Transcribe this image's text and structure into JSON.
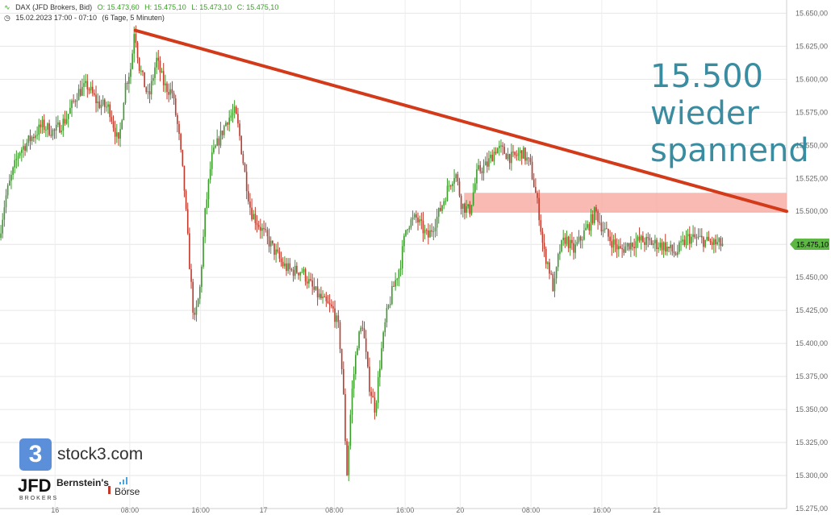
{
  "header": {
    "symbol": "DAX (JFD Brokers, Bid)",
    "open": "O: 15.473,60",
    "high": "H: 15.475,10",
    "low": "L: 15.473,10",
    "close": "C: 15.475,10",
    "range": "15.02.2023 17:00 - 07:10",
    "interval": "(6 Tage, 5 Minuten)"
  },
  "annotation": {
    "lines": [
      "15.500",
      "wieder",
      "spannend"
    ],
    "color": "#3a8ca0"
  },
  "branding": {
    "stock3": "stock3.com",
    "stock3_glyph": "3",
    "jfd": "JFD",
    "jfd_sub": "BROKERS",
    "bernstein": "Bernstein's",
    "boerse": "Börse"
  },
  "chart_data": {
    "type": "candlestick",
    "y_axis": {
      "min": 15275,
      "max": 15660,
      "position": "right",
      "ticks": [
        15275,
        15300,
        15325,
        15350,
        15375,
        15400,
        15425,
        15450,
        15475,
        15500,
        15525,
        15550,
        15575,
        15600,
        15625,
        15650
      ],
      "tick_labels": [
        "15.275,00",
        "15.300,00",
        "15.325,00",
        "15.350,00",
        "15.375,00",
        "15.400,00",
        "15.425,00",
        "15.450,00",
        "15.475,00",
        "15.500,00",
        "15.525,00",
        "15.550,00",
        "15.575,00",
        "15.600,00",
        "15.625,00",
        "15.650,00"
      ]
    },
    "x_axis": {
      "labels": [
        "16",
        "08:00",
        "16:00",
        "17",
        "08:00",
        "16:00",
        "20",
        "08:00",
        "16:00",
        "21"
      ],
      "positions": [
        0.07,
        0.165,
        0.255,
        0.335,
        0.425,
        0.515,
        0.585,
        0.675,
        0.765,
        0.835
      ]
    },
    "grid": true,
    "last_price": {
      "value": 15475.1,
      "label": "15.475,10",
      "color": "#5cb842"
    },
    "price_path": [
      [
        0.0,
        15480
      ],
      [
        0.008,
        15510
      ],
      [
        0.015,
        15525
      ],
      [
        0.025,
        15545
      ],
      [
        0.04,
        15555
      ],
      [
        0.055,
        15565
      ],
      [
        0.07,
        15560
      ],
      [
        0.085,
        15570
      ],
      [
        0.1,
        15590
      ],
      [
        0.112,
        15595
      ],
      [
        0.125,
        15582
      ],
      [
        0.14,
        15578
      ],
      [
        0.152,
        15550
      ],
      [
        0.16,
        15595
      ],
      [
        0.168,
        15610
      ],
      [
        0.172,
        15640
      ],
      [
        0.178,
        15610
      ],
      [
        0.19,
        15585
      ],
      [
        0.2,
        15615
      ],
      [
        0.21,
        15595
      ],
      [
        0.22,
        15590
      ],
      [
        0.228,
        15560
      ],
      [
        0.235,
        15520
      ],
      [
        0.242,
        15460
      ],
      [
        0.248,
        15415
      ],
      [
        0.255,
        15440
      ],
      [
        0.262,
        15500
      ],
      [
        0.27,
        15540
      ],
      [
        0.28,
        15555
      ],
      [
        0.29,
        15570
      ],
      [
        0.3,
        15575
      ],
      [
        0.305,
        15560
      ],
      [
        0.312,
        15530
      ],
      [
        0.32,
        15500
      ],
      [
        0.33,
        15490
      ],
      [
        0.34,
        15480
      ],
      [
        0.35,
        15470
      ],
      [
        0.36,
        15460
      ],
      [
        0.37,
        15455
      ],
      [
        0.385,
        15455
      ],
      [
        0.4,
        15440
      ],
      [
        0.415,
        15430
      ],
      [
        0.425,
        15425
      ],
      [
        0.432,
        15410
      ],
      [
        0.437,
        15370
      ],
      [
        0.442,
        15300
      ],
      [
        0.448,
        15360
      ],
      [
        0.455,
        15400
      ],
      [
        0.462,
        15415
      ],
      [
        0.47,
        15370
      ],
      [
        0.478,
        15350
      ],
      [
        0.485,
        15390
      ],
      [
        0.492,
        15420
      ],
      [
        0.5,
        15440
      ],
      [
        0.51,
        15460
      ],
      [
        0.518,
        15490
      ],
      [
        0.53,
        15495
      ],
      [
        0.545,
        15480
      ],
      [
        0.56,
        15500
      ],
      [
        0.572,
        15520
      ],
      [
        0.58,
        15530
      ],
      [
        0.588,
        15505
      ],
      [
        0.598,
        15500
      ],
      [
        0.608,
        15530
      ],
      [
        0.62,
        15535
      ],
      [
        0.632,
        15548
      ],
      [
        0.642,
        15545
      ],
      [
        0.652,
        15540
      ],
      [
        0.665,
        15545
      ],
      [
        0.675,
        15535
      ],
      [
        0.68,
        15520
      ],
      [
        0.686,
        15500
      ],
      [
        0.692,
        15470
      ],
      [
        0.698,
        15460
      ],
      [
        0.705,
        15440
      ],
      [
        0.712,
        15470
      ],
      [
        0.72,
        15480
      ],
      [
        0.73,
        15470
      ],
      [
        0.74,
        15480
      ],
      [
        0.75,
        15490
      ],
      [
        0.758,
        15500
      ],
      [
        0.765,
        15490
      ],
      [
        0.775,
        15480
      ],
      [
        0.79,
        15470
      ],
      [
        0.8,
        15475
      ],
      [
        0.815,
        15478
      ],
      [
        0.83,
        15476
      ],
      [
        0.845,
        15474
      ],
      [
        0.86,
        15468
      ],
      [
        0.875,
        15480
      ],
      [
        0.89,
        15479
      ],
      [
        0.905,
        15476
      ],
      [
        0.918,
        15475
      ]
    ],
    "trendline": {
      "from": [
        0.172,
        15637
      ],
      "to": [
        1.0,
        15500
      ],
      "color": "#d33a1a"
    },
    "resistance_zone": {
      "x_from": 0.59,
      "x_to": 1.0,
      "y_from": 15499,
      "y_to": 15514,
      "color": "#f7a39a"
    }
  }
}
